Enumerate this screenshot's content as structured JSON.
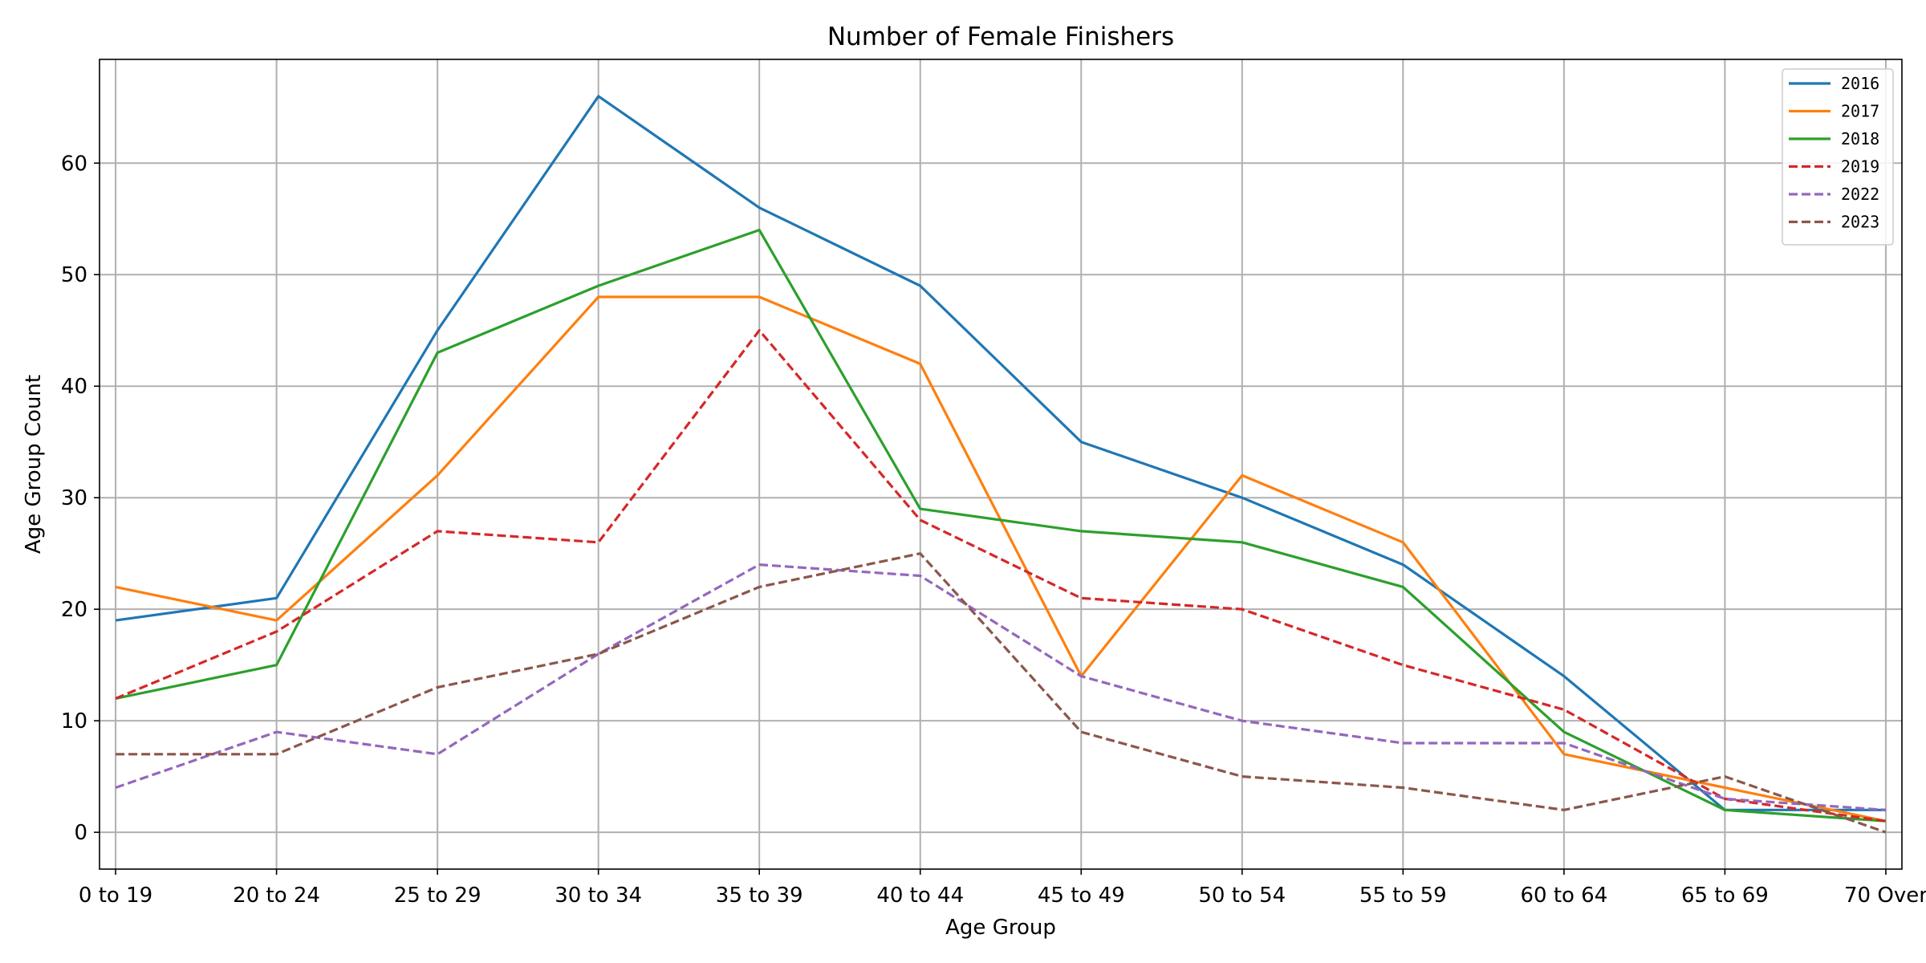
{
  "chart_data": {
    "type": "line",
    "title": "Number of Female Finishers",
    "xlabel": "Age Group",
    "ylabel": "Age Group Count",
    "categories": [
      "0 to 19",
      "20 to 24",
      "25 to 29",
      "30 to 34",
      "35 to 39",
      "40 to 44",
      "45 to 49",
      "50 to 54",
      "55 to 59",
      "60 to 64",
      "65 to 69",
      "70 Over"
    ],
    "ylim": [
      -3.3,
      69.3
    ],
    "yticks": [
      0,
      10,
      20,
      30,
      40,
      50,
      60
    ],
    "grid": true,
    "legend_position": "top-right",
    "series": [
      {
        "name": "2016",
        "color": "#1f77b4",
        "dash": "solid",
        "values": [
          19,
          21,
          45,
          66,
          56,
          49,
          35,
          30,
          24,
          14,
          2,
          2
        ]
      },
      {
        "name": "2017",
        "color": "#ff7f0e",
        "dash": "solid",
        "values": [
          22,
          19,
          32,
          48,
          48,
          42,
          14,
          32,
          26,
          7,
          4,
          1
        ]
      },
      {
        "name": "2018",
        "color": "#2ca02c",
        "dash": "solid",
        "values": [
          12,
          15,
          43,
          49,
          54,
          29,
          27,
          26,
          22,
          9,
          2,
          1
        ]
      },
      {
        "name": "2019",
        "color": "#d62728",
        "dash": "dashed",
        "values": [
          12,
          18,
          27,
          26,
          45,
          28,
          21,
          20,
          15,
          11,
          3,
          1
        ]
      },
      {
        "name": "2022",
        "color": "#9467bd",
        "dash": "dashed",
        "values": [
          4,
          9,
          7,
          16,
          24,
          23,
          14,
          10,
          8,
          8,
          3,
          2
        ]
      },
      {
        "name": "2023",
        "color": "#8c564b",
        "dash": "dashed",
        "values": [
          7,
          7,
          13,
          16,
          22,
          25,
          9,
          5,
          4,
          2,
          5,
          0
        ]
      }
    ]
  }
}
